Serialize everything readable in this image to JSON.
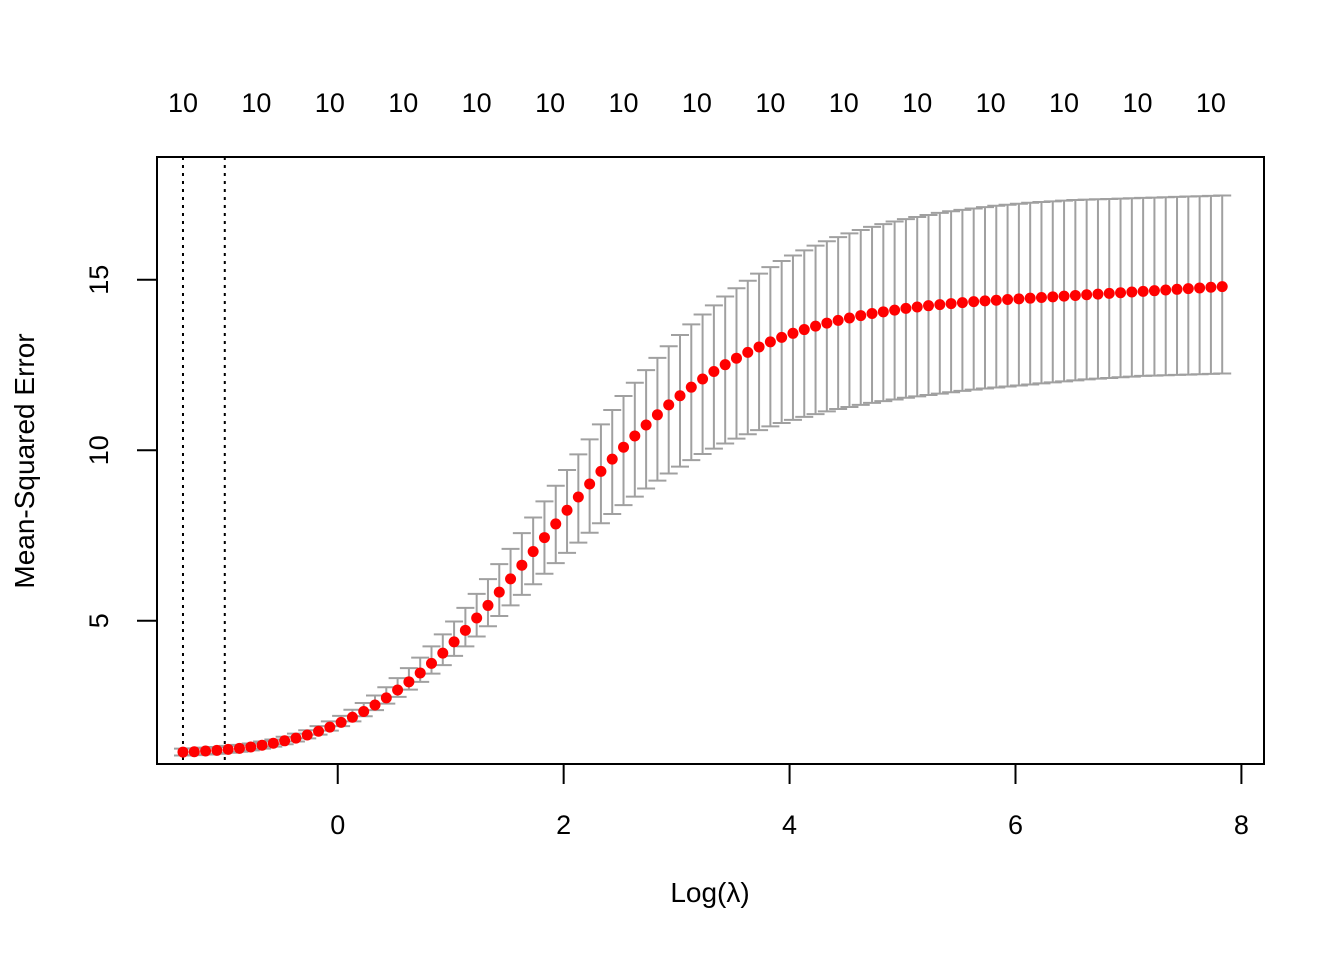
{
  "chart_data": {
    "type": "scatter",
    "xlabel": "Log(λ)",
    "ylabel": "Mean-Squared Error",
    "xlim": [
      -1.6,
      8.2
    ],
    "ylim": [
      0.8,
      18.6
    ],
    "x_ticks": [
      0,
      2,
      4,
      6,
      8
    ],
    "y_ticks": [
      5,
      10,
      15
    ],
    "top_axis": {
      "x": [
        -1.37,
        -0.72,
        -0.07,
        0.58,
        1.23,
        1.88,
        2.53,
        3.18,
        3.83,
        4.48,
        5.13,
        5.78,
        6.43,
        7.08,
        7.73
      ],
      "labels": [
        "10",
        "10",
        "10",
        "10",
        "10",
        "10",
        "10",
        "10",
        "10",
        "10",
        "10",
        "10",
        "10",
        "10",
        "10"
      ]
    },
    "vlines": [
      -1.37,
      -1.0
    ],
    "point_color": "#ff0000",
    "errorbar_color": "#a0a0a0",
    "series": [
      {
        "x": [
          -1.37,
          -1.27,
          -1.17,
          -1.07,
          -0.97,
          -0.87,
          -0.77,
          -0.67,
          -0.57,
          -0.47,
          -0.37,
          -0.27,
          -0.17,
          -0.07,
          0.03,
          0.13,
          0.23,
          0.33,
          0.43,
          0.53,
          0.63,
          0.73,
          0.83,
          0.93,
          1.03,
          1.13,
          1.23,
          1.33,
          1.43,
          1.53,
          1.63,
          1.73,
          1.83,
          1.93,
          2.03,
          2.13,
          2.23,
          2.33,
          2.43,
          2.53,
          2.63,
          2.73,
          2.83,
          2.93,
          3.03,
          3.13,
          3.23,
          3.33,
          3.43,
          3.53,
          3.63,
          3.73,
          3.83,
          3.93,
          4.03,
          4.13,
          4.23,
          4.33,
          4.43,
          4.53,
          4.63,
          4.73,
          4.83,
          4.93,
          5.03,
          5.13,
          5.23,
          5.33,
          5.43,
          5.53,
          5.63,
          5.73,
          5.83,
          5.93,
          6.03,
          6.13,
          6.23,
          6.33,
          6.43,
          6.53,
          6.63,
          6.73,
          6.83,
          6.93,
          7.03,
          7.13,
          7.23,
          7.33,
          7.43,
          7.53,
          7.63,
          7.73,
          7.83
        ],
        "y": [
          1.15,
          1.16,
          1.18,
          1.2,
          1.23,
          1.26,
          1.3,
          1.35,
          1.41,
          1.48,
          1.56,
          1.65,
          1.76,
          1.88,
          2.02,
          2.17,
          2.34,
          2.53,
          2.74,
          2.97,
          3.21,
          3.47,
          3.75,
          4.05,
          4.38,
          4.72,
          5.08,
          5.45,
          5.84,
          6.23,
          6.63,
          7.03,
          7.44,
          7.84,
          8.24,
          8.63,
          9.01,
          9.38,
          9.74,
          10.09,
          10.42,
          10.74,
          11.04,
          11.33,
          11.6,
          11.85,
          12.09,
          12.31,
          12.51,
          12.7,
          12.87,
          13.03,
          13.18,
          13.31,
          13.43,
          13.54,
          13.64,
          13.73,
          13.81,
          13.88,
          13.95,
          14.01,
          14.06,
          14.11,
          14.16,
          14.2,
          14.24,
          14.27,
          14.3,
          14.33,
          14.36,
          14.38,
          14.4,
          14.42,
          14.44,
          14.46,
          14.48,
          14.5,
          14.52,
          14.54,
          14.56,
          14.58,
          14.6,
          14.62,
          14.64,
          14.66,
          14.68,
          14.7,
          14.72,
          14.74,
          14.76,
          14.78,
          14.8
        ],
        "lower": [
          1.05,
          1.06,
          1.08,
          1.1,
          1.13,
          1.16,
          1.2,
          1.25,
          1.31,
          1.38,
          1.46,
          1.55,
          1.66,
          1.78,
          1.91,
          2.05,
          2.2,
          2.38,
          2.57,
          2.77,
          2.98,
          3.21,
          3.45,
          3.7,
          3.97,
          4.25,
          4.54,
          4.84,
          5.14,
          5.45,
          5.76,
          6.07,
          6.38,
          6.69,
          6.99,
          7.29,
          7.58,
          7.86,
          8.13,
          8.39,
          8.64,
          8.88,
          9.11,
          9.32,
          9.52,
          9.71,
          9.89,
          10.05,
          10.2,
          10.34,
          10.47,
          10.59,
          10.7,
          10.8,
          10.89,
          10.98,
          11.06,
          11.14,
          11.21,
          11.27,
          11.33,
          11.39,
          11.44,
          11.49,
          11.54,
          11.58,
          11.62,
          11.66,
          11.7,
          11.74,
          11.78,
          11.81,
          11.84,
          11.87,
          11.9,
          11.93,
          11.96,
          11.99,
          12.02,
          12.05,
          12.08,
          12.1,
          12.12,
          12.14,
          12.16,
          12.18,
          12.19,
          12.2,
          12.21,
          12.22,
          12.23,
          12.24,
          12.25
        ],
        "upper": [
          1.25,
          1.26,
          1.28,
          1.3,
          1.33,
          1.36,
          1.4,
          1.46,
          1.52,
          1.6,
          1.69,
          1.79,
          1.91,
          2.05,
          2.21,
          2.39,
          2.59,
          2.81,
          3.05,
          3.32,
          3.61,
          3.92,
          4.25,
          4.6,
          4.98,
          5.38,
          5.79,
          6.22,
          6.66,
          7.11,
          7.57,
          8.03,
          8.5,
          8.96,
          9.42,
          9.88,
          10.32,
          10.76,
          11.18,
          11.59,
          11.98,
          12.35,
          12.71,
          13.05,
          13.38,
          13.69,
          13.98,
          14.25,
          14.51,
          14.75,
          14.97,
          15.18,
          15.37,
          15.55,
          15.71,
          15.86,
          16.0,
          16.13,
          16.25,
          16.36,
          16.46,
          16.55,
          16.63,
          16.71,
          16.78,
          16.84,
          16.9,
          16.96,
          17.01,
          17.05,
          17.09,
          17.13,
          17.17,
          17.2,
          17.23,
          17.26,
          17.28,
          17.3,
          17.32,
          17.34,
          17.35,
          17.36,
          17.37,
          17.38,
          17.39,
          17.4,
          17.41,
          17.42,
          17.43,
          17.44,
          17.45,
          17.46,
          17.47
        ]
      }
    ]
  }
}
